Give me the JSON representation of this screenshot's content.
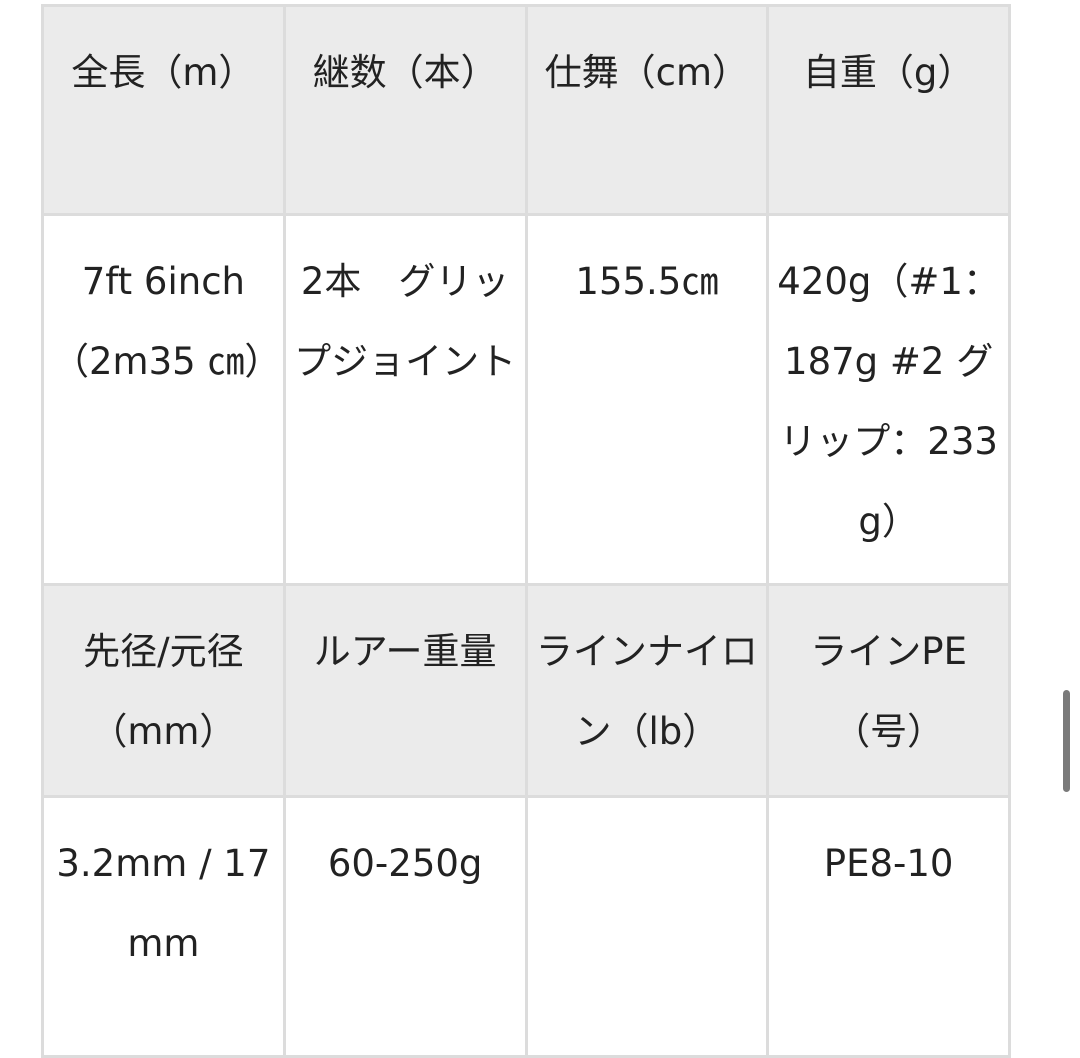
{
  "table": {
    "rows": [
      [
        "全長（m）",
        "継数（本）",
        "仕舞（cm）",
        "自重（g）"
      ],
      [
        "7ft 6inch（2m35 ㎝）",
        "2本　グリップジョイント",
        "155.5㎝",
        "420g（#1：187g #2 グリップ：233g）"
      ],
      [
        "先径/元径（mm）",
        "ルアー重量",
        "ラインナイロン（lb）",
        "ラインPE（号）"
      ],
      [
        "3.2mm / 17mm",
        "60-250g",
        null,
        "PE8-10"
      ]
    ]
  }
}
